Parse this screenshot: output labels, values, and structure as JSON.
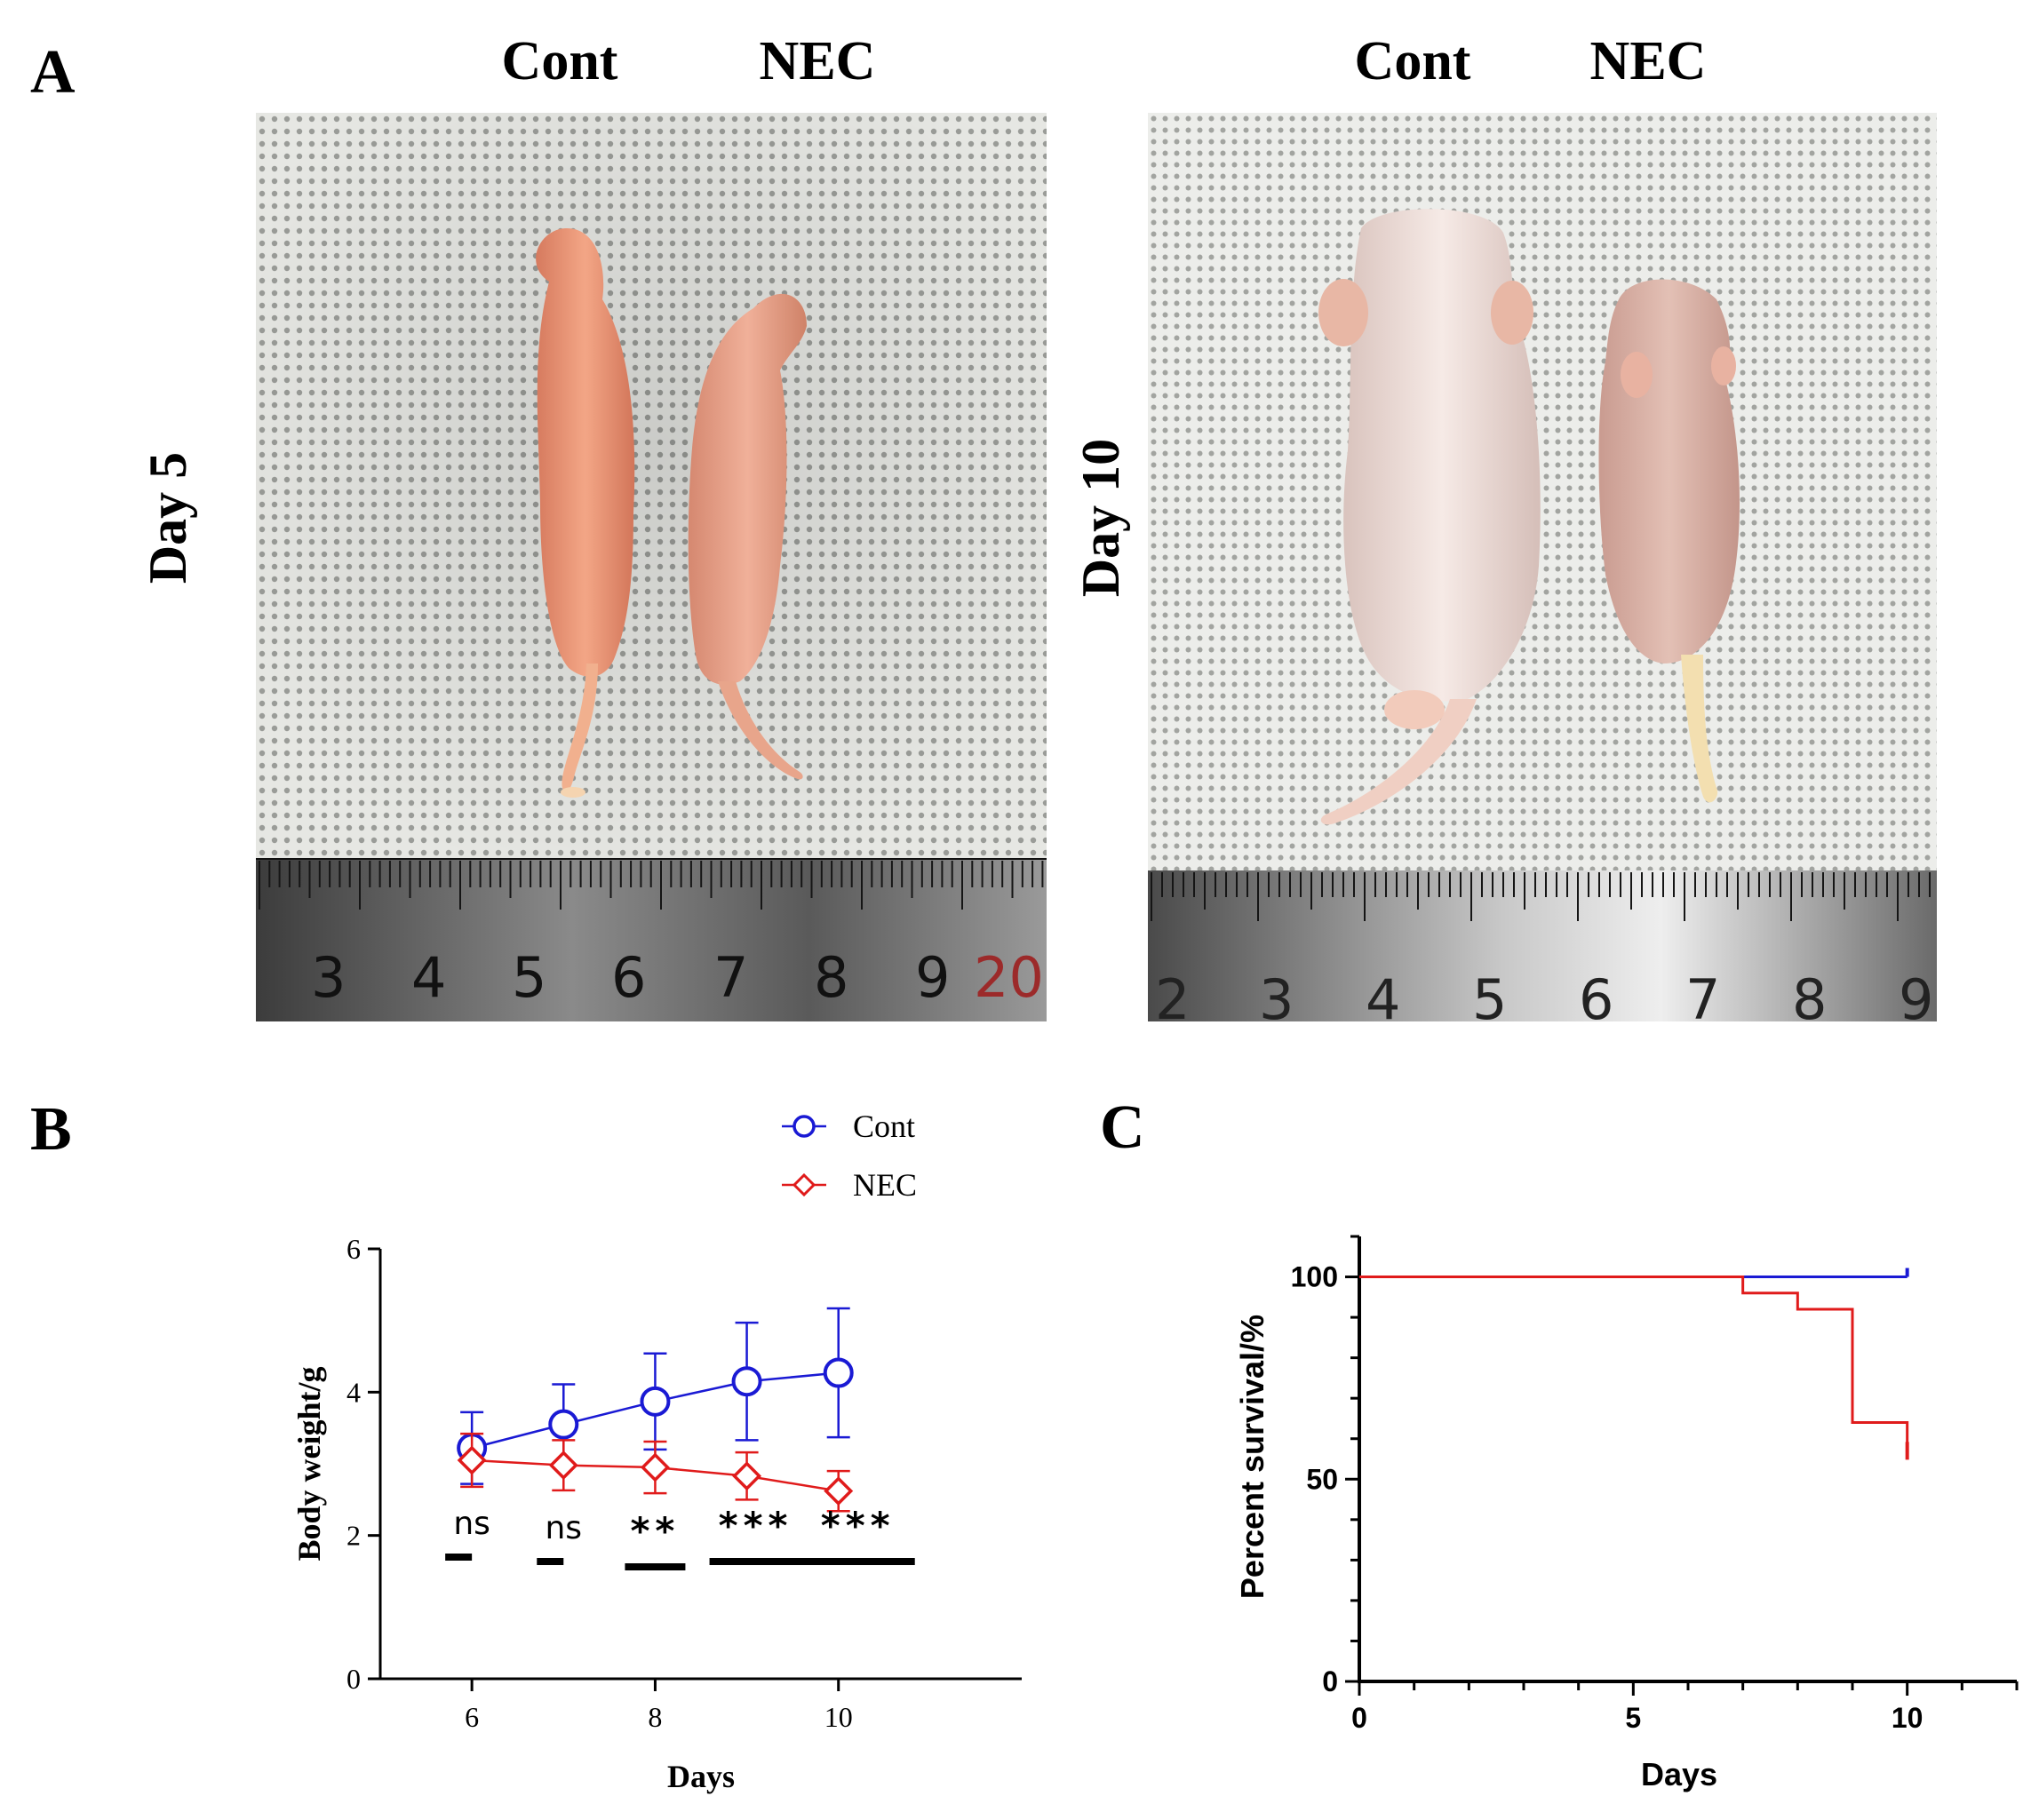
{
  "panel_a": {
    "letter": "A",
    "left_header_cont": "Cont",
    "left_header_nec": "NEC",
    "right_header_cont": "Cont",
    "right_header_nec": "NEC",
    "left_row_label": "Day 5",
    "right_row_label": "Day 10",
    "left_ruler_numbers": [
      "3",
      "4",
      "5",
      "6",
      "7",
      "8",
      "9",
      "20"
    ],
    "right_ruler_numbers": [
      "2",
      "3",
      "4",
      "5",
      "6",
      "7",
      "8",
      "9"
    ]
  },
  "panel_b": {
    "letter": "B"
  },
  "panel_c": {
    "letter": "C"
  },
  "colors": {
    "cont": "#1a1ad4",
    "nec": "#e01b1b",
    "axis": "#000000"
  },
  "chart_data": [
    {
      "type": "line",
      "xlabel": "Days",
      "ylabel": "Body weight/g",
      "xticks": [
        6,
        8,
        10
      ],
      "yticks": [
        0,
        2,
        4,
        6
      ],
      "xlim": [
        5,
        12
      ],
      "ylim": [
        0,
        6
      ],
      "x": [
        6,
        7,
        8,
        9,
        10
      ],
      "series": [
        {
          "name": "Cont",
          "marker": "circle",
          "values": [
            3.22,
            3.55,
            3.87,
            4.15,
            4.27
          ],
          "error": [
            0.5,
            0.56,
            0.67,
            0.82,
            0.9
          ]
        },
        {
          "name": "NEC",
          "marker": "diamond",
          "values": [
            3.05,
            2.98,
            2.95,
            2.83,
            2.62
          ],
          "error": [
            0.37,
            0.35,
            0.36,
            0.33,
            0.28
          ]
        }
      ],
      "significance": [
        "ns",
        "ns",
        "**",
        "***",
        "***"
      ],
      "legend": "top-right"
    },
    {
      "type": "line",
      "xlabel": "Days",
      "ylabel": "Percent survival/%",
      "xticks": [
        0,
        5,
        10
      ],
      "yticks": [
        0,
        50,
        100
      ],
      "xlim": [
        0,
        12
      ],
      "ylim": [
        0,
        110
      ],
      "series": [
        {
          "name": "Cont",
          "step": true,
          "x": [
            0,
            10
          ],
          "y": [
            100,
            100
          ]
        },
        {
          "name": "NEC",
          "step": true,
          "x": [
            0,
            7,
            8,
            9,
            10
          ],
          "y": [
            100,
            96,
            92,
            64,
            57
          ]
        }
      ],
      "grid": false
    }
  ]
}
